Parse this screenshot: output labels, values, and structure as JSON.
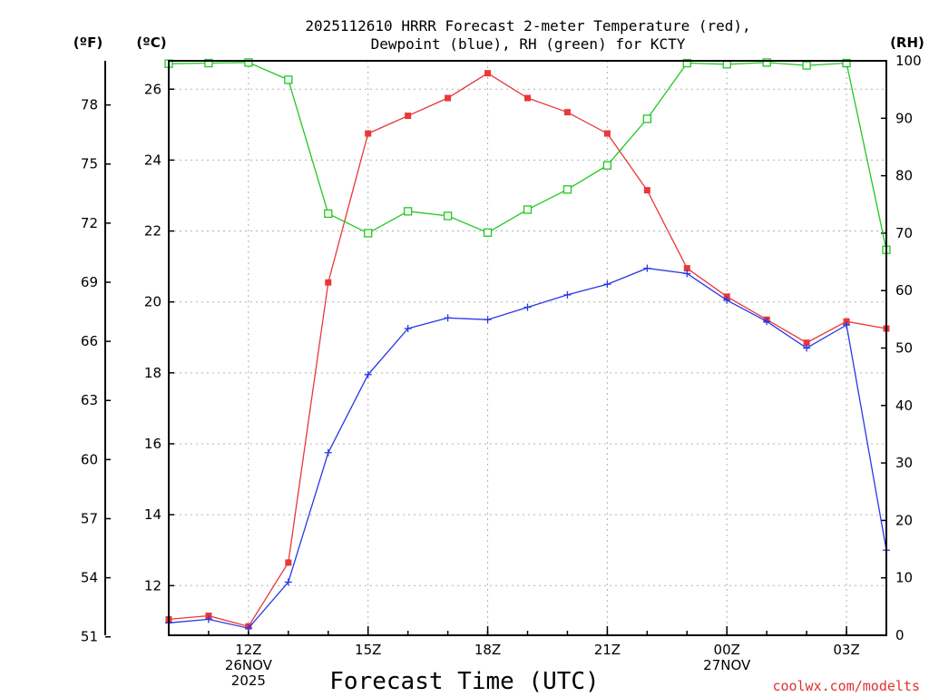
{
  "chart_data": {
    "type": "line",
    "title_line1": "2025112610 HRRR Forecast 2-meter Temperature (red),",
    "title_line2": "Dewpoint (blue), RH (green) for KCTY",
    "unit_f": "(ºF)",
    "unit_c": "(ºC)",
    "unit_rh": "(RH)",
    "xlabel": "Forecast Time (UTC)",
    "credit": "coolwx.com/modelts",
    "x_hours": [
      10,
      11,
      12,
      13,
      14,
      15,
      16,
      17,
      18,
      19,
      20,
      21,
      22,
      23,
      24,
      25,
      26,
      27,
      28
    ],
    "xlim": [
      10,
      28
    ],
    "ylim_c": [
      10.6,
      26.8
    ],
    "ylim_rh": [
      0,
      100
    ],
    "f_ticks": [
      {
        "value": 51,
        "label": "51"
      },
      {
        "value": 54,
        "label": "54"
      },
      {
        "value": 57,
        "label": "57"
      },
      {
        "value": 60,
        "label": "60"
      },
      {
        "value": 63,
        "label": "63"
      },
      {
        "value": 66,
        "label": "66"
      },
      {
        "value": 69,
        "label": "69"
      },
      {
        "value": 72,
        "label": "72"
      },
      {
        "value": 75,
        "label": "75"
      },
      {
        "value": 78,
        "label": "78"
      }
    ],
    "c_ticks": [
      {
        "value": 12,
        "label": "12"
      },
      {
        "value": 14,
        "label": "14"
      },
      {
        "value": 16,
        "label": "16"
      },
      {
        "value": 18,
        "label": "18"
      },
      {
        "value": 20,
        "label": "20"
      },
      {
        "value": 22,
        "label": "22"
      },
      {
        "value": 24,
        "label": "24"
      },
      {
        "value": 26,
        "label": "26"
      }
    ],
    "rh_ticks": [
      {
        "value": 0,
        "label": "0"
      },
      {
        "value": 10,
        "label": "10"
      },
      {
        "value": 20,
        "label": "20"
      },
      {
        "value": 30,
        "label": "30"
      },
      {
        "value": 40,
        "label": "40"
      },
      {
        "value": 50,
        "label": "50"
      },
      {
        "value": 60,
        "label": "60"
      },
      {
        "value": 70,
        "label": "70"
      },
      {
        "value": 80,
        "label": "80"
      },
      {
        "value": 90,
        "label": "90"
      },
      {
        "value": 100,
        "label": "100"
      }
    ],
    "x_ticks": [
      {
        "hour": 12,
        "lines": [
          "12Z",
          "26NOV",
          "2025"
        ]
      },
      {
        "hour": 15,
        "lines": [
          "15Z"
        ]
      },
      {
        "hour": 18,
        "lines": [
          "18Z"
        ]
      },
      {
        "hour": 21,
        "lines": [
          "21Z"
        ]
      },
      {
        "hour": 24,
        "lines": [
          "00Z",
          "27NOV"
        ]
      },
      {
        "hour": 27,
        "lines": [
          "03Z"
        ]
      }
    ],
    "series": [
      {
        "name": "Temperature",
        "unit": "C",
        "color": "#e83838",
        "marker": "filled-square",
        "values": [
          11.05,
          11.15,
          10.85,
          12.65,
          20.55,
          24.75,
          25.25,
          25.75,
          26.45,
          25.75,
          25.35,
          24.75,
          23.15,
          20.95,
          20.15,
          19.5,
          18.85,
          19.45,
          19.25
        ]
      },
      {
        "name": "Dewpoint",
        "unit": "C",
        "color": "#2838e8",
        "marker": "plus",
        "values": [
          10.95,
          11.05,
          10.8,
          12.1,
          15.75,
          17.95,
          19.25,
          19.55,
          19.5,
          19.85,
          20.2,
          20.5,
          20.95,
          20.8,
          20.05,
          19.45,
          18.7,
          19.35,
          13.0
        ]
      },
      {
        "name": "RH",
        "unit": "%",
        "color": "#20c820",
        "marker": "open-square",
        "values": [
          99.5,
          99.6,
          99.7,
          96.7,
          73.4,
          70.0,
          73.8,
          73.0,
          70.1,
          74.1,
          77.6,
          81.8,
          89.9,
          99.6,
          99.4,
          99.7,
          99.2,
          99.6,
          67.1
        ]
      }
    ]
  }
}
